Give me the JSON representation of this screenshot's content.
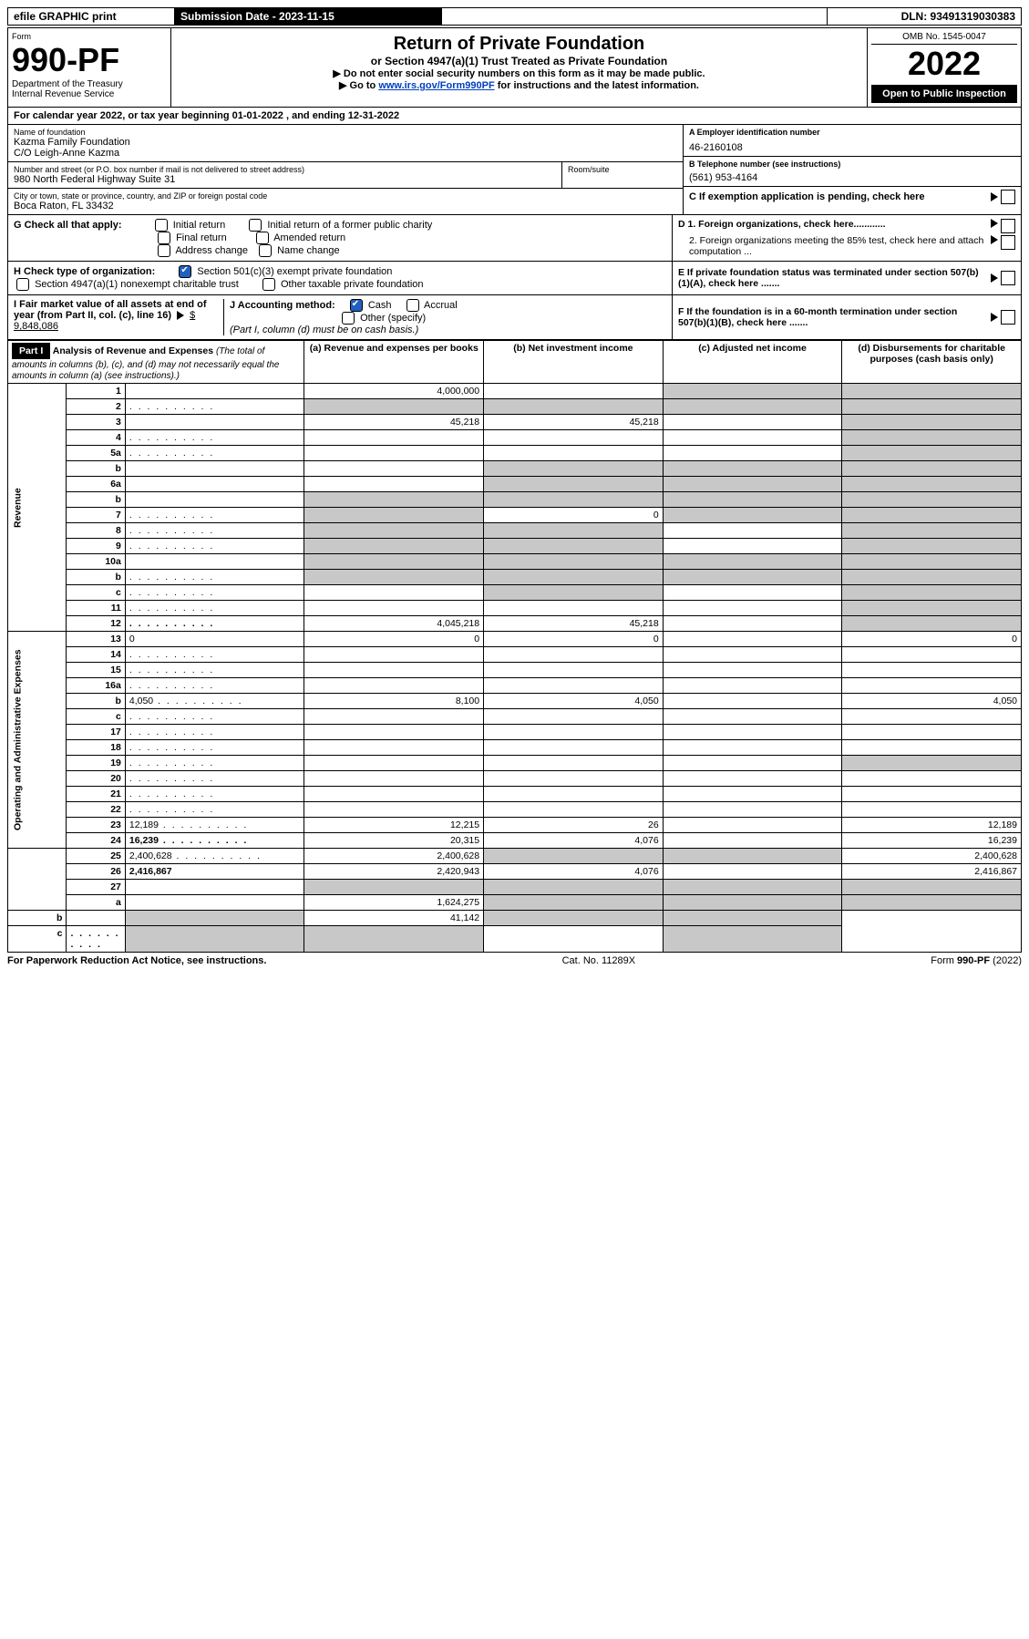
{
  "topbar": {
    "efile": "efile GRAPHIC print",
    "subdate_label": "Submission Date - 2023-11-15",
    "dln": "DLN: 93491319030383"
  },
  "header": {
    "form_label": "Form",
    "form_no": "990-PF",
    "dept": "Department of the Treasury",
    "irs": "Internal Revenue Service",
    "title": "Return of Private Foundation",
    "subtitle": "or Section 4947(a)(1) Trust Treated as Private Foundation",
    "instr1": "▶ Do not enter social security numbers on this form as it may be made public.",
    "instr2_pre": "▶ Go to ",
    "instr2_link": "www.irs.gov/Form990PF",
    "instr2_post": " for instructions and the latest information.",
    "omb": "OMB No. 1545-0047",
    "year": "2022",
    "open": "Open to Public Inspection"
  },
  "taxyear": "For calendar year 2022, or tax year beginning 01-01-2022                           , and ending 12-31-2022",
  "foundation": {
    "name_label": "Name of foundation",
    "name1": "Kazma Family Foundation",
    "name2": "C/O Leigh-Anne Kazma",
    "addr_label": "Number and street (or P.O. box number if mail is not delivered to street address)",
    "addr": "980 North Federal Highway Suite 31",
    "room_label": "Room/suite",
    "city_label": "City or town, state or province, country, and ZIP or foreign postal code",
    "city": "Boca Raton, FL  33432",
    "a_label": "A Employer identification number",
    "a_val": "46-2160108",
    "b_label": "B Telephone number (see instructions)",
    "b_val": "(561) 953-4164",
    "c_label": "C If exemption application is pending, check here",
    "d1": "D 1. Foreign organizations, check here............",
    "d2": "2. Foreign organizations meeting the 85% test, check here and attach computation ...",
    "e": "E  If private foundation status was terminated under section 507(b)(1)(A), check here .......",
    "f": "F  If the foundation is in a 60-month termination under section 507(b)(1)(B), check here .......",
    "g_label": "G Check all that apply:",
    "g_opts": [
      "Initial return",
      "Initial return of a former public charity",
      "Final return",
      "Amended return",
      "Address change",
      "Name change"
    ],
    "h_label": "H Check type of organization:",
    "h1": "Section 501(c)(3) exempt private foundation",
    "h2": "Section 4947(a)(1) nonexempt charitable trust",
    "h3": "Other taxable private foundation",
    "i_label": "I Fair market value of all assets at end of year (from Part II, col. (c), line 16)",
    "i_val": "$  9,848,086",
    "j_label": "J Accounting method:",
    "j_cash": "Cash",
    "j_acc": "Accrual",
    "j_other": "Other (specify)",
    "j_note": "(Part I, column (d) must be on cash basis.)"
  },
  "part1": {
    "label": "Part I",
    "title": "Analysis of Revenue and Expenses",
    "title_note": "(The total of amounts in columns (b), (c), and (d) may not necessarily equal the amounts in column (a) (see instructions).)",
    "col_a": "(a)   Revenue and expenses per books",
    "col_b": "(b)   Net investment income",
    "col_c": "(c)   Adjusted net income",
    "col_d": "(d)   Disbursements for charitable purposes (cash basis only)"
  },
  "vert": {
    "rev": "Revenue",
    "exp": "Operating and Administrative Expenses"
  },
  "rows": [
    {
      "n": "1",
      "d": "",
      "a": "4,000,000",
      "b": "",
      "c": "",
      "shade_c": true,
      "shade_d": true
    },
    {
      "n": "2",
      "d": "",
      "dots": true,
      "a": "",
      "b": "",
      "c": "",
      "shade_all": true
    },
    {
      "n": "3",
      "d": "",
      "a": "45,218",
      "b": "45,218",
      "c": "",
      "shade_d": true
    },
    {
      "n": "4",
      "d": "",
      "dots": true,
      "a": "",
      "b": "",
      "c": "",
      "shade_d": true
    },
    {
      "n": "5a",
      "d": "",
      "dots": true,
      "a": "",
      "b": "",
      "c": "",
      "shade_d": true
    },
    {
      "n": "b",
      "d": "",
      "a": "",
      "b": "",
      "c": "",
      "shade_bcd": true,
      "box": true
    },
    {
      "n": "6a",
      "d": "",
      "a": "",
      "b": "",
      "c": "",
      "shade_bcd": true
    },
    {
      "n": "b",
      "d": "",
      "a": "",
      "b": "",
      "c": "",
      "shade_abcd": true,
      "box": true
    },
    {
      "n": "7",
      "d": "",
      "dots": true,
      "a": "",
      "b": "0",
      "c": "",
      "shade_a": true,
      "shade_cd": true
    },
    {
      "n": "8",
      "d": "",
      "dots": true,
      "a": "",
      "b": "",
      "c": "",
      "shade_ab": true,
      "shade_d": true
    },
    {
      "n": "9",
      "d": "",
      "dots": true,
      "a": "",
      "b": "",
      "c": "",
      "shade_ab": true,
      "shade_d": true
    },
    {
      "n": "10a",
      "d": "",
      "a": "",
      "b": "",
      "c": "",
      "shade_abcd": true,
      "box": true
    },
    {
      "n": "b",
      "d": "",
      "dots": true,
      "a": "",
      "b": "",
      "c": "",
      "shade_abcd": true,
      "box": true
    },
    {
      "n": "c",
      "d": "",
      "dots": true,
      "a": "",
      "b": "",
      "c": "",
      "shade_b": true,
      "shade_d": true
    },
    {
      "n": "11",
      "d": "",
      "dots": true,
      "a": "",
      "b": "",
      "c": "",
      "shade_d": true
    },
    {
      "n": "12",
      "d": "",
      "dots": true,
      "bold": true,
      "a": "4,045,218",
      "b": "45,218",
      "c": "",
      "shade_d": true
    },
    {
      "n": "13",
      "d": "0",
      "a": "0",
      "b": "0",
      "c": ""
    },
    {
      "n": "14",
      "d": "",
      "dots": true,
      "a": "",
      "b": "",
      "c": ""
    },
    {
      "n": "15",
      "d": "",
      "dots": true,
      "a": "",
      "b": "",
      "c": ""
    },
    {
      "n": "16a",
      "d": "",
      "dots": true,
      "a": "",
      "b": "",
      "c": ""
    },
    {
      "n": "b",
      "d": "4,050",
      "dots": true,
      "a": "8,100",
      "b": "4,050",
      "c": ""
    },
    {
      "n": "c",
      "d": "",
      "dots": true,
      "a": "",
      "b": "",
      "c": ""
    },
    {
      "n": "17",
      "d": "",
      "dots": true,
      "a": "",
      "b": "",
      "c": ""
    },
    {
      "n": "18",
      "d": "",
      "dots": true,
      "a": "",
      "b": "",
      "c": ""
    },
    {
      "n": "19",
      "d": "",
      "dots": true,
      "a": "",
      "b": "",
      "c": "",
      "shade_d": true
    },
    {
      "n": "20",
      "d": "",
      "dots": true,
      "a": "",
      "b": "",
      "c": ""
    },
    {
      "n": "21",
      "d": "",
      "dots": true,
      "a": "",
      "b": "",
      "c": ""
    },
    {
      "n": "22",
      "d": "",
      "dots": true,
      "a": "",
      "b": "",
      "c": ""
    },
    {
      "n": "23",
      "d": "12,189",
      "dots": true,
      "a": "12,215",
      "b": "26",
      "c": ""
    },
    {
      "n": "24",
      "d": "16,239",
      "dots": true,
      "bold": true,
      "a": "20,315",
      "b": "4,076",
      "c": ""
    },
    {
      "n": "25",
      "d": "2,400,628",
      "dots": true,
      "a": "2,400,628",
      "b": "",
      "c": "",
      "shade_bc": true
    },
    {
      "n": "26",
      "d": "2,416,867",
      "bold": true,
      "a": "2,420,943",
      "b": "4,076",
      "c": ""
    },
    {
      "n": "27",
      "d": "",
      "a": "",
      "b": "",
      "c": "",
      "shade_abcd": true
    },
    {
      "n": "a",
      "d": "",
      "bold": true,
      "a": "1,624,275",
      "b": "",
      "c": "",
      "shade_bcd": true
    },
    {
      "n": "b",
      "d": "",
      "bold": true,
      "a": "",
      "b": "41,142",
      "c": "",
      "shade_a": true,
      "shade_cd": true
    },
    {
      "n": "c",
      "d": "",
      "bold": true,
      "dots": true,
      "a": "",
      "b": "",
      "c": "",
      "shade_ab": true,
      "shade_d": true
    }
  ],
  "footer": {
    "left": "For Paperwork Reduction Act Notice, see instructions.",
    "mid": "Cat. No. 11289X",
    "right": "Form 990-PF (2022)"
  }
}
